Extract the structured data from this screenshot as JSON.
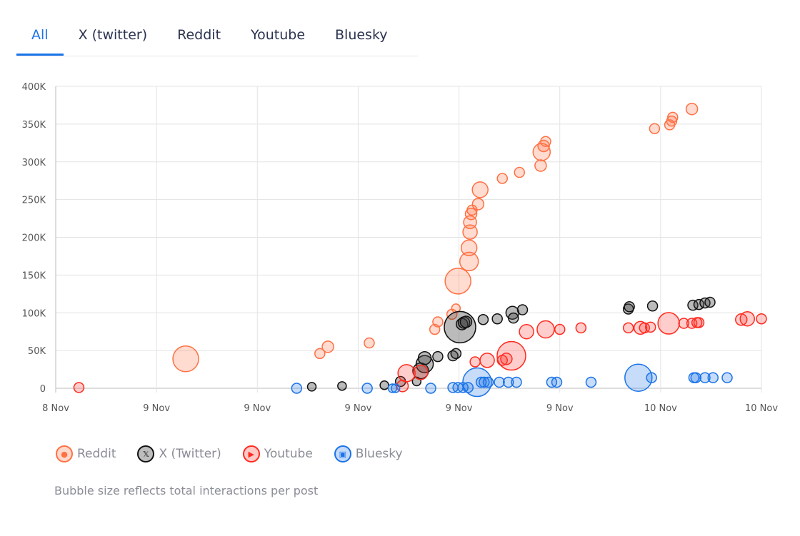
{
  "tabs": [
    {
      "label": "All",
      "active": true
    },
    {
      "label": "X (twitter)"
    },
    {
      "label": "Reddit"
    },
    {
      "label": "Youtube"
    },
    {
      "label": "Bluesky"
    }
  ],
  "legend": [
    {
      "label": "Reddit",
      "icon": "reddit-icon",
      "glyph": "●",
      "stroke": "#ff7043",
      "fill": "#ffd9cc"
    },
    {
      "label": "X (Twitter)",
      "icon": "x-logo-icon",
      "glyph": "𝕏",
      "stroke": "#111111",
      "fill": "#bdbdbd"
    },
    {
      "label": "Youtube",
      "icon": "youtube-icon",
      "glyph": "▶",
      "stroke": "#ff2a1f",
      "fill": "#ffc9c6"
    },
    {
      "label": "Bluesky",
      "icon": "bluesky-icon",
      "glyph": "▣",
      "stroke": "#1a73e8",
      "fill": "#c3dafa"
    }
  ],
  "caption": "Bubble size reflects total interactions per post",
  "chart_data": {
    "type": "scatter",
    "bubble": true,
    "xlabel": "",
    "ylabel": "",
    "x_ticks": [
      "8 Nov",
      "9 Nov",
      "9 Nov",
      "9 Nov",
      "9 Nov",
      "9 Nov",
      "10 Nov",
      "10 Nov"
    ],
    "xlim": [
      0,
      7
    ],
    "y_ticks": [
      "0",
      "50K",
      "100K",
      "150K",
      "200K",
      "250K",
      "300K",
      "350K",
      "400K"
    ],
    "ylim": [
      0,
      400000
    ],
    "grid": true,
    "legend_position": "bottom-left",
    "series": [
      {
        "name": "Reddit",
        "stroke": "#ff7043",
        "fill": "rgba(255,112,67,0.25)",
        "points": [
          [
            1.29,
            39000,
            18
          ],
          [
            2.62,
            46000,
            7
          ],
          [
            2.7,
            55000,
            8
          ],
          [
            3.11,
            60000,
            7
          ],
          [
            3.76,
            78000,
            7
          ],
          [
            3.79,
            88000,
            7
          ],
          [
            3.93,
            98000,
            7
          ],
          [
            3.97,
            106000,
            6
          ],
          [
            3.99,
            142000,
            18
          ],
          [
            4.1,
            168000,
            13
          ],
          [
            4.1,
            186000,
            11
          ],
          [
            4.11,
            207000,
            10
          ],
          [
            4.11,
            220000,
            9
          ],
          [
            4.12,
            231000,
            8
          ],
          [
            4.13,
            236000,
            7
          ],
          [
            4.19,
            244000,
            8
          ],
          [
            4.21,
            263000,
            11
          ],
          [
            4.43,
            278000,
            7
          ],
          [
            4.6,
            286000,
            7
          ],
          [
            4.81,
            295000,
            8
          ],
          [
            4.82,
            313000,
            12
          ],
          [
            4.84,
            321000,
            8
          ],
          [
            4.86,
            327000,
            7
          ],
          [
            5.94,
            344000,
            7
          ],
          [
            6.09,
            349000,
            7
          ],
          [
            6.11,
            354000,
            7
          ],
          [
            6.12,
            359000,
            7
          ],
          [
            6.31,
            370000,
            8
          ]
        ]
      },
      {
        "name": "X (Twitter)",
        "stroke": "#111111",
        "fill": "rgba(60,60,60,0.35)",
        "points": [
          [
            2.54,
            2000,
            6
          ],
          [
            2.84,
            3000,
            6
          ],
          [
            3.26,
            4000,
            6
          ],
          [
            3.42,
            9000,
            7
          ],
          [
            3.58,
            9000,
            6
          ],
          [
            3.62,
            23000,
            11
          ],
          [
            3.66,
            32000,
            12
          ],
          [
            3.66,
            40000,
            9
          ],
          [
            3.79,
            42000,
            7
          ],
          [
            3.94,
            43000,
            7
          ],
          [
            3.97,
            46000,
            7
          ],
          [
            4.01,
            81000,
            22
          ],
          [
            4.03,
            85000,
            8
          ],
          [
            4.05,
            87000,
            8
          ],
          [
            4.07,
            88000,
            8
          ],
          [
            4.24,
            91000,
            7
          ],
          [
            4.38,
            92000,
            7
          ],
          [
            4.53,
            100000,
            9
          ],
          [
            4.54,
            93000,
            7
          ],
          [
            4.63,
            104000,
            7
          ],
          [
            5.68,
            105000,
            7
          ],
          [
            5.69,
            108000,
            7
          ],
          [
            5.92,
            109000,
            7
          ],
          [
            6.32,
            110000,
            7
          ],
          [
            6.38,
            111000,
            7
          ],
          [
            6.44,
            113000,
            7
          ],
          [
            6.49,
            114000,
            7
          ]
        ]
      },
      {
        "name": "Youtube",
        "stroke": "#ff2a1f",
        "fill": "rgba(255,60,50,0.25)",
        "points": [
          [
            0.23,
            1000,
            7
          ],
          [
            3.44,
            3000,
            8
          ],
          [
            3.48,
            20000,
            12
          ],
          [
            3.62,
            21000,
            10
          ],
          [
            4.16,
            35000,
            7
          ],
          [
            4.28,
            37000,
            10
          ],
          [
            4.43,
            37000,
            7
          ],
          [
            4.47,
            39000,
            8
          ],
          [
            4.52,
            43000,
            20
          ],
          [
            4.67,
            75000,
            10
          ],
          [
            4.86,
            78000,
            12
          ],
          [
            5.0,
            78000,
            7
          ],
          [
            5.21,
            80000,
            7
          ],
          [
            5.68,
            80000,
            7
          ],
          [
            5.8,
            80000,
            9
          ],
          [
            5.84,
            80000,
            7
          ],
          [
            5.9,
            81000,
            7
          ],
          [
            6.08,
            86000,
            15
          ],
          [
            6.23,
            86000,
            7
          ],
          [
            6.31,
            86000,
            7
          ],
          [
            6.36,
            87000,
            7
          ],
          [
            6.38,
            87000,
            7
          ],
          [
            6.8,
            91000,
            8
          ],
          [
            6.86,
            92000,
            10
          ],
          [
            7.0,
            92000,
            7
          ]
        ]
      },
      {
        "name": "Bluesky",
        "stroke": "#1a73e8",
        "fill": "rgba(26,115,232,0.25)",
        "points": [
          [
            2.39,
            0,
            7
          ],
          [
            3.09,
            0,
            7
          ],
          [
            3.34,
            0,
            6
          ],
          [
            3.37,
            0,
            6
          ],
          [
            3.72,
            0,
            7
          ],
          [
            3.94,
            1000,
            7
          ],
          [
            3.99,
            1000,
            7
          ],
          [
            4.04,
            1000,
            7
          ],
          [
            4.09,
            1000,
            7
          ],
          [
            4.18,
            8000,
            20
          ],
          [
            4.22,
            8000,
            7
          ],
          [
            4.25,
            8000,
            7
          ],
          [
            4.29,
            8000,
            7
          ],
          [
            4.4,
            8000,
            7
          ],
          [
            4.49,
            8000,
            7
          ],
          [
            4.57,
            8000,
            7
          ],
          [
            4.92,
            8000,
            7
          ],
          [
            4.97,
            8000,
            7
          ],
          [
            5.31,
            8000,
            7
          ],
          [
            5.78,
            14000,
            19
          ],
          [
            5.91,
            14000,
            7
          ],
          [
            6.33,
            14000,
            7
          ],
          [
            6.35,
            14000,
            7
          ],
          [
            6.44,
            14000,
            7
          ],
          [
            6.52,
            14000,
            7
          ],
          [
            6.66,
            14000,
            7
          ]
        ]
      }
    ]
  }
}
